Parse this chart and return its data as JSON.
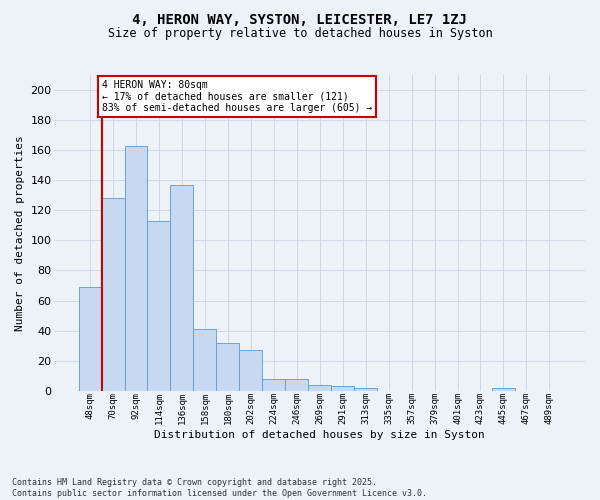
{
  "title_line1": "4, HERON WAY, SYSTON, LEICESTER, LE7 1ZJ",
  "title_line2": "Size of property relative to detached houses in Syston",
  "xlabel": "Distribution of detached houses by size in Syston",
  "ylabel": "Number of detached properties",
  "categories": [
    "48sqm",
    "70sqm",
    "92sqm",
    "114sqm",
    "136sqm",
    "158sqm",
    "180sqm",
    "202sqm",
    "224sqm",
    "246sqm",
    "269sqm",
    "291sqm",
    "313sqm",
    "335sqm",
    "357sqm",
    "379sqm",
    "401sqm",
    "423sqm",
    "445sqm",
    "467sqm",
    "489sqm"
  ],
  "values": [
    69,
    128,
    163,
    113,
    137,
    41,
    32,
    27,
    8,
    8,
    4,
    3,
    2,
    0,
    0,
    0,
    0,
    0,
    2,
    0,
    0
  ],
  "bar_color": "#c6d9f1",
  "bar_edge_color": "#5b9bd5",
  "grid_color": "#d0d8e8",
  "background_color": "#edf1f8",
  "ref_line_color": "#cc0000",
  "annotation_text": "4 HERON WAY: 80sqm\n← 17% of detached houses are smaller (121)\n83% of semi-detached houses are larger (605) →",
  "annotation_box_facecolor": "#ffffff",
  "annotation_box_edgecolor": "#cc0000",
  "footer_line1": "Contains HM Land Registry data © Crown copyright and database right 2025.",
  "footer_line2": "Contains public sector information licensed under the Open Government Licence v3.0.",
  "ylim": [
    0,
    210
  ],
  "yticks": [
    0,
    20,
    40,
    60,
    80,
    100,
    120,
    140,
    160,
    180,
    200
  ]
}
